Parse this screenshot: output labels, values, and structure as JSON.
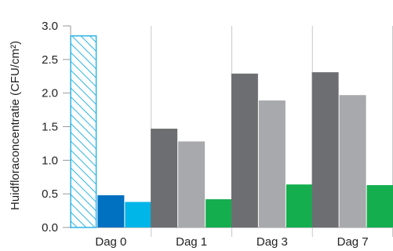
{
  "chart_data": {
    "type": "bar",
    "ylabel": "Huidfloraconcentratie (CFU/cm²)",
    "ylim": [
      0,
      3.0
    ],
    "yticks": [
      "0.0",
      "0.5",
      "1.0",
      "1.5",
      "2.0",
      "2.5",
      "3.0"
    ],
    "grid": "vertical group separators",
    "groups": [
      {
        "label": "Dag 0",
        "bars": [
          {
            "value": 2.86,
            "color": "#2EB4E6",
            "style": "hatched"
          },
          {
            "value": 0.48,
            "color": "#0070C0",
            "style": "solid"
          },
          {
            "value": 0.38,
            "color": "#00B5E8",
            "style": "solid"
          }
        ]
      },
      {
        "label": "Dag 1",
        "bars": [
          {
            "value": 1.47,
            "color": "#6D6E71",
            "style": "solid"
          },
          {
            "value": 1.28,
            "color": "#A7A9AC",
            "style": "solid"
          },
          {
            "value": 0.42,
            "color": "#14AE4E",
            "style": "solid"
          }
        ]
      },
      {
        "label": "Dag 3",
        "bars": [
          {
            "value": 2.29,
            "color": "#6D6E71",
            "style": "solid"
          },
          {
            "value": 1.89,
            "color": "#A7A9AC",
            "style": "solid"
          },
          {
            "value": 0.64,
            "color": "#14AE4E",
            "style": "solid"
          }
        ]
      },
      {
        "label": "Dag 7",
        "bars": [
          {
            "value": 2.31,
            "color": "#6D6E71",
            "style": "solid"
          },
          {
            "value": 1.97,
            "color": "#A7A9AC",
            "style": "solid"
          },
          {
            "value": 0.63,
            "color": "#14AE4E",
            "style": "solid"
          }
        ]
      }
    ]
  }
}
